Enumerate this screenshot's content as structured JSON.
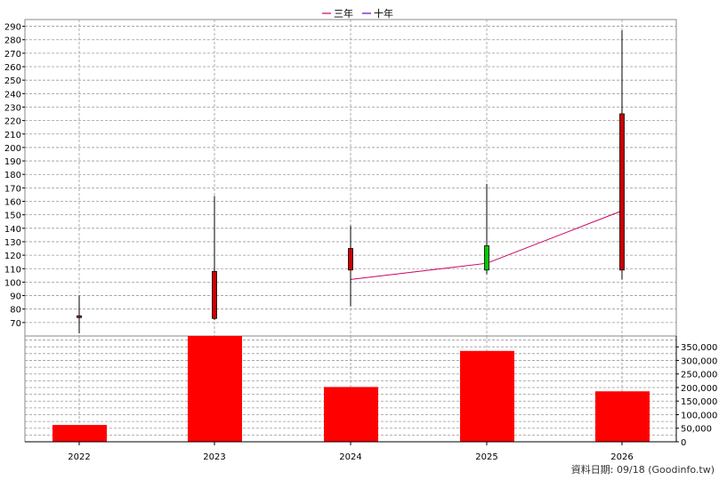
{
  "chart_data": [
    {
      "type": "candlestick",
      "legend": {
        "placement": "top-center",
        "items": [
          {
            "label": "三年",
            "color": "#cc0066"
          },
          {
            "label": "十年",
            "color": "#6600cc"
          }
        ]
      },
      "x_categories": [
        "2022",
        "2023",
        "2024",
        "2025",
        "2026"
      ],
      "y_ticks": [
        70,
        80,
        90,
        100,
        110,
        120,
        130,
        140,
        150,
        160,
        170,
        180,
        190,
        200,
        210,
        220,
        230,
        240,
        250,
        260,
        270,
        280,
        290
      ],
      "y_axis_position": "left",
      "ylim": [
        60,
        295
      ],
      "grid": true,
      "candles": [
        {
          "x": "2022",
          "open": 74,
          "close": 75,
          "high": 90,
          "low": 62
        },
        {
          "x": "2023",
          "open": 73,
          "close": 108,
          "high": 164,
          "low": 72
        },
        {
          "x": "2024",
          "open": 109,
          "close": 125,
          "high": 142,
          "low": 82
        },
        {
          "x": "2025",
          "open": 127,
          "close": 109,
          "high": 173,
          "low": 106
        },
        {
          "x": "2026",
          "open": 109,
          "close": 225,
          "high": 287,
          "low": 102
        }
      ],
      "ma_series": [
        {
          "label": "三年",
          "points": [
            {
              "x": "2024",
              "y": 102
            },
            {
              "x": "2025",
              "y": 114
            },
            {
              "x": "2026",
              "y": 153
            }
          ]
        }
      ],
      "colors": {
        "up": "#cc0000",
        "down": "#00cc00",
        "wick": "#000000"
      }
    },
    {
      "type": "bar",
      "categories": [
        "2022",
        "2023",
        "2024",
        "2025",
        "2026"
      ],
      "values": [
        62000,
        390000,
        202000,
        335000,
        186000
      ],
      "y_ticks": [
        0,
        50000,
        100000,
        150000,
        200000,
        250000,
        300000,
        350000
      ],
      "y_tick_labels": [
        "0",
        "50,000",
        "100,000",
        "150,000",
        "200,000",
        "250,000",
        "300,000",
        "350,000"
      ],
      "y_axis_position": "right",
      "ylim": [
        0,
        390000
      ],
      "grid": true,
      "bar_color": "#ff0000"
    }
  ],
  "footer": {
    "source": "資料日期: 09/18  (Goodinfo.tw)"
  }
}
